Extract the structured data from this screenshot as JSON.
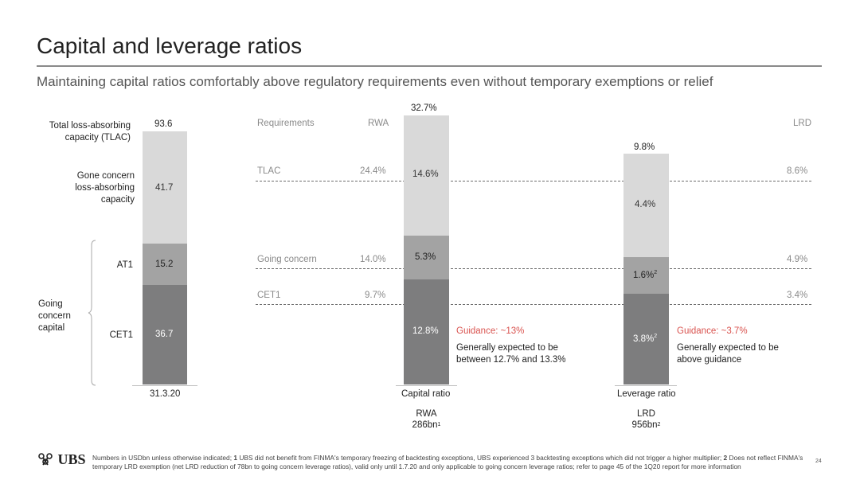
{
  "page": {
    "title": "Capital and leverage ratios",
    "subtitle": "Maintaining capital ratios comfortably above regulatory requirements even without temporary exemptions or relief",
    "page_number": "24"
  },
  "tlac_chart": {
    "total_label": "Total loss-absorbing capacity (TLAC)",
    "total_value": "93.6",
    "gone_concern_label": "Gone concern loss-absorbing capacity",
    "gone_concern_value": "41.7",
    "at1_label": "AT1",
    "at1_value": "15.2",
    "cet1_label": "CET1",
    "cet1_value": "36.7",
    "going_concern_capital_label": "Going concern capital",
    "date_label": "31.3.20"
  },
  "ratios": {
    "requirements_label": "Requirements",
    "rwa_header": "RWA",
    "lrd_header": "LRD",
    "rows": [
      {
        "name": "TLAC",
        "rwa": "24.4%",
        "lrd": "8.6%"
      },
      {
        "name": "Going concern",
        "rwa": "14.0%",
        "lrd": "4.9%"
      },
      {
        "name": "CET1",
        "rwa": "9.7%",
        "lrd": "3.4%"
      }
    ],
    "capital_ratio": {
      "total": "32.7%",
      "tlac_part": "14.6%",
      "going_concern_part": "5.3%",
      "cet1_part": "12.8%",
      "guidance": "Guidance: ~13%",
      "guidance_note": "Generally expected to be between 12.7% and 13.3%",
      "axis_label": "Capital ratio",
      "base_name": "RWA",
      "base_value": "286bn",
      "base_sup": "1"
    },
    "leverage_ratio": {
      "total": "9.8%",
      "tlac_part": "4.4%",
      "going_concern_part": "1.6%",
      "going_concern_sup": "2",
      "cet1_part": "3.8%",
      "cet1_sup": "2",
      "guidance": "Guidance: ~3.7%",
      "guidance_note": "Generally expected to be above guidance",
      "axis_label": "Leverage ratio",
      "base_name": "LRD",
      "base_value": "956bn",
      "base_sup": "2"
    }
  },
  "footer": {
    "logo_text": "UBS",
    "footnote_parts": [
      {
        "text": "Numbers in USDbn unless otherwise indicated; ",
        "bold": false
      },
      {
        "text": "1",
        "bold": true
      },
      {
        "text": " UBS did not benefit from FINMA's temporary freezing of backtesting exceptions, UBS experienced 3 backtesting exceptions which did not trigger a higher multiplier; ",
        "bold": false
      },
      {
        "text": "2",
        "bold": true
      },
      {
        "text": " Does not reflect FINMA's temporary LRD exemption (net LRD reduction of 78bn to going concern leverage ratios), valid only until 1.7.20 and only applicable to going concern leverage ratios; refer to page 45 of the 1Q20 report for more information",
        "bold": false
      }
    ]
  },
  "colors": {
    "light": "#d9d9d9",
    "medium": "#a3a3a3",
    "dark": "#7d7d7e",
    "guidance": "#d9534f"
  }
}
